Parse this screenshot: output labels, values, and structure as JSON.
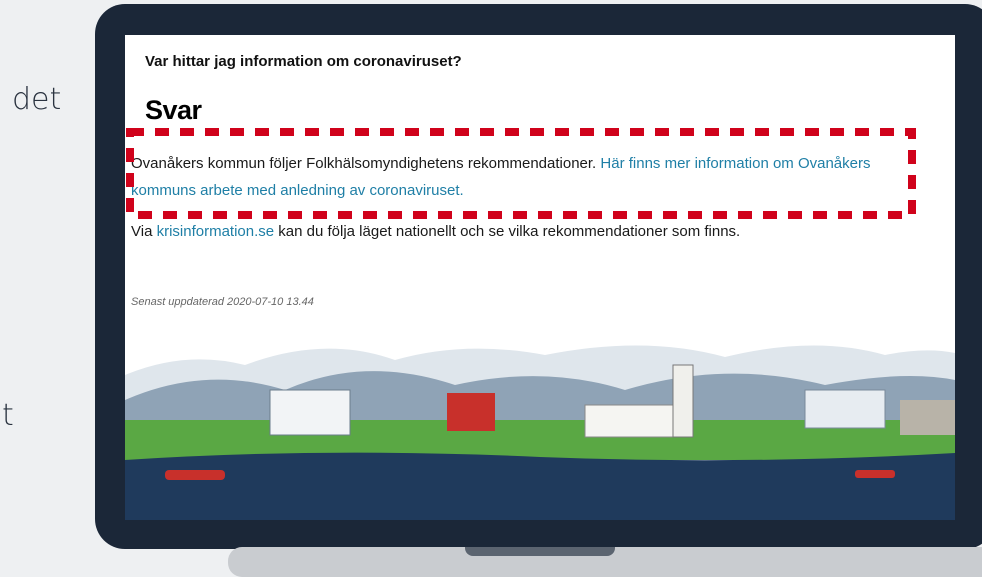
{
  "background_text": [
    "det",
    "t"
  ],
  "page": {
    "question": "Var hittar jag information om coronaviruset?",
    "heading": "Svar",
    "paragraph1": {
      "text": "Ovanåkers kommun följer Folkhälsomyndighetens rekommendationer. ",
      "link": "Här finns mer information om Ovanåkers kommuns arbete med anledning av coronaviruset."
    },
    "paragraph2": {
      "prefix": "Via ",
      "link": "krisinformation.se",
      "suffix": " kan du följa läget nationellt och se vilka rekommendationer som finns."
    },
    "updated": "Senast uppdaterad 2020-07-10 13.44"
  }
}
